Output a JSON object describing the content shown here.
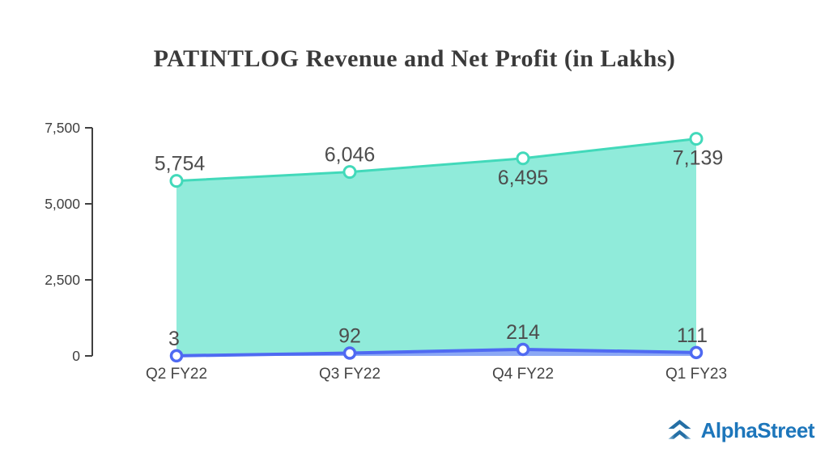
{
  "title": "PATINTLOG Revenue and Net Profit (in Lakhs)",
  "branding": {
    "logo_text": "AlphaStreet",
    "logo_color": "#1d76bb",
    "logo_icon": "double-chevron-up",
    "logo_icon_dark": "#256fa5",
    "logo_icon_light": "#9cc3de"
  },
  "chart_data": {
    "type": "area",
    "title": "PATINTLOG Revenue and Net Profit (in Lakhs)",
    "categories": [
      "Q2 FY22",
      "Q3 FY22",
      "Q4 FY22",
      "Q1 FY23"
    ],
    "series": [
      {
        "name": "Revenue",
        "values": [
          5754,
          6046,
          6495,
          7139
        ],
        "labels": [
          "5,754",
          "6,046",
          "6,495",
          "7,139"
        ],
        "label_placement": [
          "above",
          "above",
          "below",
          "below"
        ],
        "line_color": "#42d9ba",
        "fill_color": "#8aead8",
        "marker": "open-circle"
      },
      {
        "name": "Net Profit",
        "values": [
          3,
          92,
          214,
          111
        ],
        "labels": [
          "3",
          "92",
          "214",
          "111"
        ],
        "label_placement": [
          "above",
          "above",
          "above",
          "above"
        ],
        "line_color": "#4f6af2",
        "fill_color": "#8ba1f7",
        "marker": "open-circle"
      }
    ],
    "xlabel": "",
    "ylabel": "",
    "ylim": [
      0,
      7500
    ],
    "yticks": [
      0,
      2500,
      5000,
      7500
    ],
    "ytick_labels": [
      "0",
      "2,500",
      "5,000",
      "7,500"
    ],
    "grid": false,
    "legend": "none",
    "axis_color": "#404040",
    "value_label_color": "#4d4d4d",
    "tick_label_color": "#3f3f3f",
    "category_label_color": "#454545"
  }
}
